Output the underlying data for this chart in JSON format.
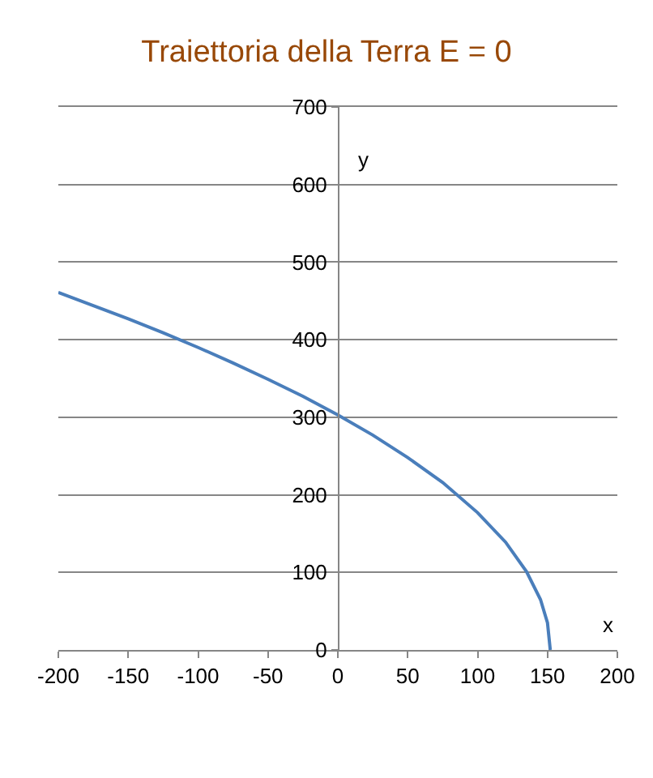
{
  "chart_data": {
    "type": "line",
    "title": "Traiettoria della Terra E = 0",
    "xlabel": "x",
    "ylabel": "y",
    "x": [
      -200,
      -175,
      -150,
      -125,
      -100,
      -75,
      -50,
      -25,
      0,
      25,
      50,
      75,
      100,
      120,
      135,
      145,
      150,
      152
    ],
    "series": [
      {
        "color": "#4a7ebb",
        "values": [
          461,
          444,
          427,
          409,
          390,
          370,
          349,
          327,
          303,
          277,
          248,
          216,
          177,
          139,
          101,
          65,
          35,
          0
        ]
      }
    ],
    "xlim": [
      -200,
      200
    ],
    "xticks": [
      -200,
      -150,
      -100,
      -50,
      0,
      50,
      100,
      150,
      200
    ],
    "ylim": [
      0,
      700
    ],
    "yticks": [
      0,
      100,
      200,
      300,
      400,
      500,
      600,
      700
    ],
    "grid": "y",
    "marker": "none",
    "line_style": "solid"
  }
}
